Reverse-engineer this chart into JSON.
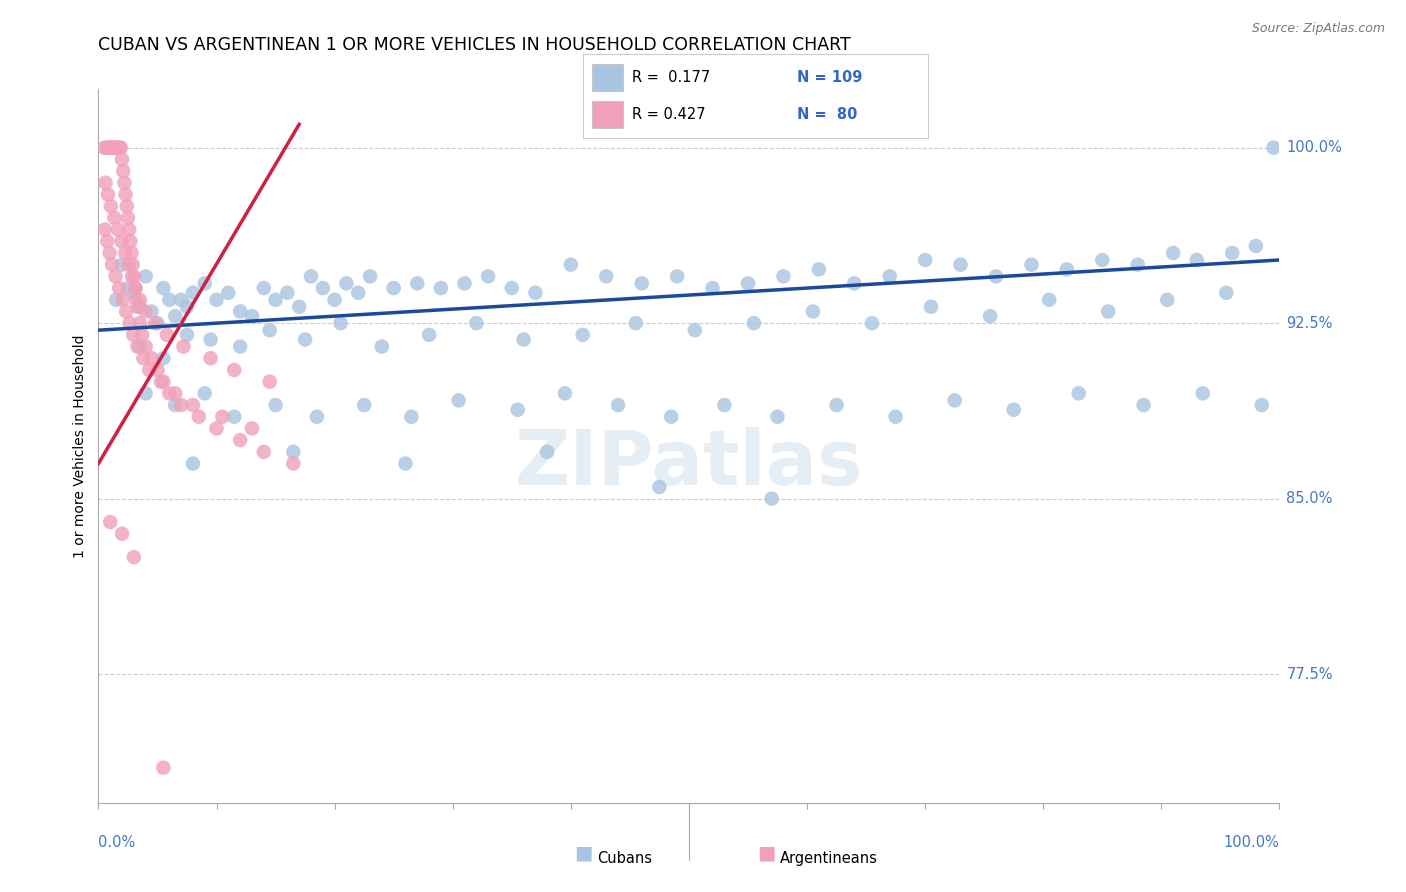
{
  "title": "CUBAN VS ARGENTINEAN 1 OR MORE VEHICLES IN HOUSEHOLD CORRELATION CHART",
  "source": "Source: ZipAtlas.com",
  "ylabel": "1 or more Vehicles in Household",
  "ylabel_right_ticks": [
    77.5,
    85.0,
    92.5,
    100.0
  ],
  "ylabel_right_labels": [
    "77.5%",
    "85.0%",
    "92.5%",
    "100.0%"
  ],
  "ylim": [
    72.0,
    102.5
  ],
  "xlim": [
    0.0,
    100.0
  ],
  "R_blue": 0.177,
  "N_blue": 109,
  "R_pink": 0.427,
  "N_pink": 80,
  "blue_color": "#a8c4e0",
  "pink_color": "#f0a0b8",
  "blue_line_color": "#1a4a99",
  "pink_line_color": "#cc2244",
  "watermark": "ZIPatlas",
  "watermark_color": "#c8daea",
  "legend_label_blue": "Cubans",
  "legend_label_pink": "Argentineans",
  "blue_scatter_x": [
    1.5,
    2.0,
    2.5,
    3.0,
    3.5,
    4.0,
    4.5,
    5.0,
    5.5,
    6.0,
    6.5,
    7.0,
    7.5,
    8.0,
    9.0,
    10.0,
    11.0,
    12.0,
    13.0,
    14.0,
    15.0,
    16.0,
    17.0,
    18.0,
    19.0,
    20.0,
    21.0,
    22.0,
    23.0,
    25.0,
    27.0,
    29.0,
    31.0,
    33.0,
    35.0,
    37.0,
    40.0,
    43.0,
    46.0,
    49.0,
    52.0,
    55.0,
    58.0,
    61.0,
    64.0,
    67.0,
    70.0,
    73.0,
    76.0,
    79.0,
    82.0,
    85.0,
    88.0,
    91.0,
    93.0,
    96.0,
    98.0,
    99.5,
    3.5,
    5.5,
    7.5,
    9.5,
    12.0,
    14.5,
    17.5,
    20.5,
    24.0,
    28.0,
    32.0,
    36.0,
    41.0,
    45.5,
    50.5,
    55.5,
    60.5,
    65.5,
    70.5,
    75.5,
    80.5,
    85.5,
    90.5,
    95.5,
    4.0,
    6.5,
    9.0,
    11.5,
    15.0,
    18.5,
    22.5,
    26.5,
    30.5,
    35.5,
    39.5,
    44.0,
    48.5,
    53.0,
    57.5,
    62.5,
    67.5,
    72.5,
    77.5,
    83.0,
    88.5,
    93.5,
    98.5,
    8.0,
    16.5,
    26.0,
    38.0,
    47.5,
    57.0
  ],
  "blue_scatter_y": [
    93.5,
    95.0,
    94.0,
    93.8,
    93.2,
    94.5,
    93.0,
    92.5,
    94.0,
    93.5,
    92.8,
    93.5,
    93.2,
    93.8,
    94.2,
    93.5,
    93.8,
    93.0,
    92.8,
    94.0,
    93.5,
    93.8,
    93.2,
    94.5,
    94.0,
    93.5,
    94.2,
    93.8,
    94.5,
    94.0,
    94.2,
    94.0,
    94.2,
    94.5,
    94.0,
    93.8,
    95.0,
    94.5,
    94.2,
    94.5,
    94.0,
    94.2,
    94.5,
    94.8,
    94.2,
    94.5,
    95.2,
    95.0,
    94.5,
    95.0,
    94.8,
    95.2,
    95.0,
    95.5,
    95.2,
    95.5,
    95.8,
    100.0,
    91.5,
    91.0,
    92.0,
    91.8,
    91.5,
    92.2,
    91.8,
    92.5,
    91.5,
    92.0,
    92.5,
    91.8,
    92.0,
    92.5,
    92.2,
    92.5,
    93.0,
    92.5,
    93.2,
    92.8,
    93.5,
    93.0,
    93.5,
    93.8,
    89.5,
    89.0,
    89.5,
    88.5,
    89.0,
    88.5,
    89.0,
    88.5,
    89.2,
    88.8,
    89.5,
    89.0,
    88.5,
    89.0,
    88.5,
    89.0,
    88.5,
    89.2,
    88.8,
    89.5,
    89.0,
    89.5,
    89.0,
    86.5,
    87.0,
    86.5,
    87.0,
    85.5,
    85.0
  ],
  "pink_scatter_x": [
    0.5,
    0.7,
    0.9,
    1.0,
    1.1,
    1.2,
    1.3,
    1.4,
    1.5,
    1.6,
    1.7,
    1.8,
    1.9,
    2.0,
    2.1,
    2.2,
    2.3,
    2.4,
    2.5,
    2.6,
    2.7,
    2.8,
    2.9,
    3.0,
    3.1,
    3.2,
    3.3,
    3.5,
    3.7,
    4.0,
    4.5,
    5.0,
    5.5,
    6.0,
    7.0,
    8.5,
    10.0,
    12.0,
    14.0,
    16.5,
    0.6,
    0.8,
    1.05,
    1.35,
    1.65,
    1.95,
    2.25,
    2.55,
    2.85,
    3.15,
    3.5,
    4.0,
    4.8,
    5.8,
    7.2,
    9.5,
    11.5,
    14.5,
    0.55,
    0.75,
    0.95,
    1.15,
    1.45,
    1.75,
    2.05,
    2.35,
    2.65,
    2.95,
    3.3,
    3.8,
    4.3,
    5.3,
    6.5,
    8.0,
    10.5,
    13.0,
    1.0,
    2.0,
    3.0,
    5.5
  ],
  "pink_scatter_y": [
    100.0,
    100.0,
    100.0,
    100.0,
    100.0,
    100.0,
    100.0,
    100.0,
    100.0,
    100.0,
    100.0,
    100.0,
    100.0,
    99.5,
    99.0,
    98.5,
    98.0,
    97.5,
    97.0,
    96.5,
    96.0,
    95.5,
    95.0,
    94.5,
    94.0,
    93.5,
    93.2,
    92.5,
    92.0,
    91.5,
    91.0,
    90.5,
    90.0,
    89.5,
    89.0,
    88.5,
    88.0,
    87.5,
    87.0,
    86.5,
    98.5,
    98.0,
    97.5,
    97.0,
    96.5,
    96.0,
    95.5,
    95.0,
    94.5,
    94.0,
    93.5,
    93.0,
    92.5,
    92.0,
    91.5,
    91.0,
    90.5,
    90.0,
    96.5,
    96.0,
    95.5,
    95.0,
    94.5,
    94.0,
    93.5,
    93.0,
    92.5,
    92.0,
    91.5,
    91.0,
    90.5,
    90.0,
    89.5,
    89.0,
    88.5,
    88.0,
    84.0,
    83.5,
    82.5,
    73.5
  ],
  "blue_trend_x": [
    0.0,
    100.0
  ],
  "blue_trend_y": [
    92.2,
    95.2
  ],
  "pink_trend_x": [
    0.0,
    17.0
  ],
  "pink_trend_y": [
    86.5,
    101.0
  ]
}
